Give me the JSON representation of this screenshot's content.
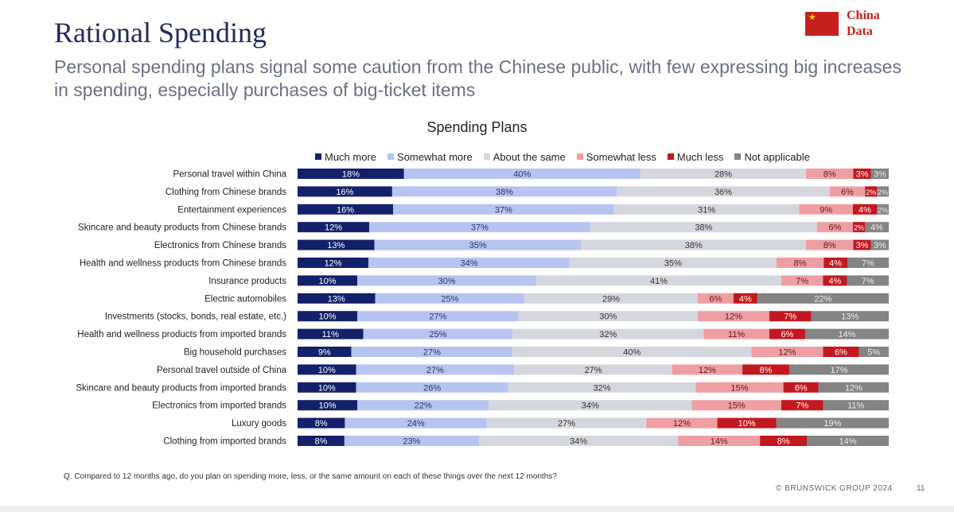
{
  "header": {
    "title": "Rational Spending",
    "subtitle": "Personal spending plans signal some caution from the Chinese public, with few expressing big increases in spending, especially purchases of big-ticket items"
  },
  "logo": {
    "text": "China Data"
  },
  "footer": {
    "question": "Q. Compared to 12 months ago, do you plan on spending more, less, or the same amount on each of these things over the next 12 months?",
    "copyright": "© BRUNSWICK GROUP 2024",
    "page_number": "11"
  },
  "colors": {
    "much_more": "#13216b",
    "somewhat_more": "#b7c4f2",
    "about_same": "#d5d7df",
    "somewhat_less": "#ef9fa4",
    "much_less": "#c3181f",
    "not_applicable": "#848484"
  },
  "chart_data": {
    "type": "bar",
    "orientation": "horizontal-stacked-100",
    "title": "Spending Plans",
    "legend_position": "top",
    "series": [
      {
        "name": "Much more",
        "values": [
          18,
          16,
          16,
          12,
          13,
          12,
          10,
          13,
          10,
          11,
          9,
          10,
          10,
          10,
          8,
          8
        ]
      },
      {
        "name": "Somewhat more",
        "values": [
          40,
          38,
          37,
          37,
          35,
          34,
          30,
          25,
          27,
          25,
          27,
          27,
          26,
          22,
          24,
          23
        ]
      },
      {
        "name": "About the same",
        "values": [
          28,
          36,
          31,
          38,
          38,
          35,
          41,
          29,
          30,
          32,
          40,
          27,
          32,
          34,
          27,
          34
        ]
      },
      {
        "name": "Somewhat less",
        "values": [
          8,
          6,
          9,
          6,
          8,
          8,
          7,
          6,
          12,
          11,
          12,
          12,
          15,
          15,
          12,
          14
        ]
      },
      {
        "name": "Much less",
        "values": [
          3,
          2,
          4,
          2,
          3,
          4,
          4,
          4,
          7,
          6,
          6,
          8,
          6,
          7,
          10,
          8
        ]
      },
      {
        "name": "Not applicable",
        "values": [
          3,
          2,
          2,
          4,
          3,
          7,
          7,
          22,
          13,
          14,
          5,
          17,
          12,
          11,
          19,
          14
        ]
      }
    ],
    "categories": [
      "Personal travel within China",
      "Clothing from Chinese brands",
      "Entertainment experiences",
      "Skincare and beauty products from Chinese brands",
      "Electronics from Chinese brands",
      "Health and wellness products from Chinese brands",
      "Insurance products",
      "Electric automobiles",
      "Investments (stocks, bonds, real estate, etc.)",
      "Health and wellness products from imported brands",
      "Big household purchases",
      "Personal travel outside of China",
      "Skincare and beauty products from imported brands",
      "Electronics from imported brands",
      "Luxury goods",
      "Clothing from imported brands"
    ]
  }
}
